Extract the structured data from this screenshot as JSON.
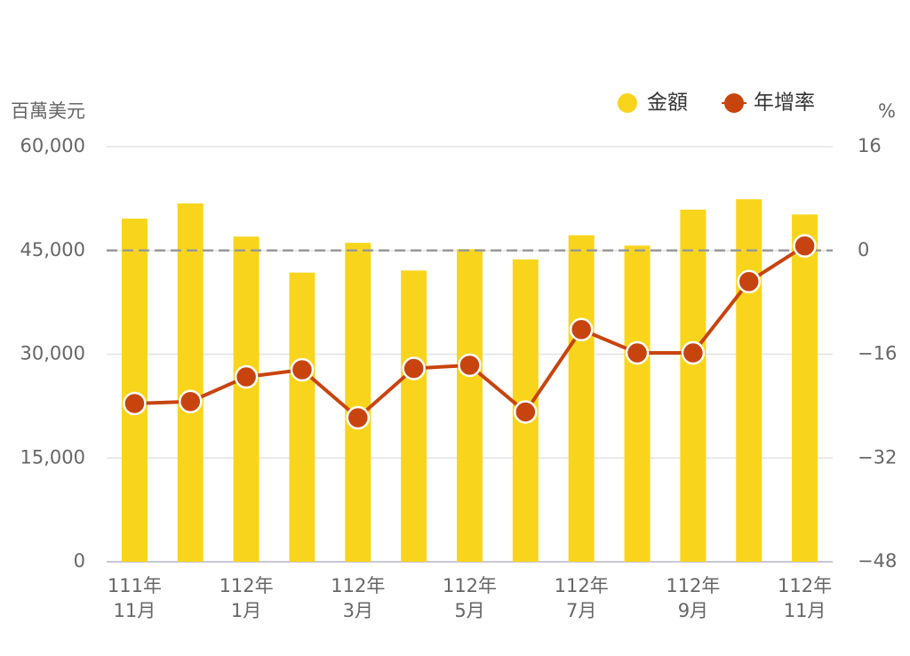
{
  "chart_data": {
    "type": "bar-line",
    "y_label": "百萬美元",
    "y2_label": "%",
    "categories": [
      [
        "111年",
        "11月"
      ],
      null,
      [
        "112年",
        "1月"
      ],
      null,
      [
        "112年",
        "3月"
      ],
      null,
      [
        "112年",
        "5月"
      ],
      null,
      [
        "112年",
        "7月"
      ],
      null,
      [
        "112年",
        "9月"
      ],
      null,
      [
        "112年",
        "11月"
      ]
    ],
    "series": [
      {
        "name": "金額",
        "color": "#f8d51c",
        "kind": "bar",
        "values": [
          49600,
          51800,
          47000,
          41800,
          46100,
          42100,
          45200,
          43700,
          47200,
          45700,
          50900,
          52400,
          50200
        ]
      },
      {
        "name": "年增率",
        "color": "#c8440f",
        "kind": "line",
        "axis": "y2",
        "values": [
          -23.6,
          -23.3,
          -19.5,
          -18.4,
          -25.8,
          -18.2,
          -17.7,
          -24.9,
          -12.2,
          -15.8,
          -15.8,
          -4.8,
          0.7
        ]
      }
    ],
    "ylim": [
      0,
      60000
    ],
    "yticks": [
      {
        "value": 0,
        "label": "0"
      },
      {
        "value": 15000,
        "label": "15,000"
      },
      {
        "value": 30000,
        "label": "30,000"
      },
      {
        "value": 45000,
        "label": "45,000"
      },
      {
        "value": 60000,
        "label": "60,000"
      }
    ],
    "y2lim": [
      -48,
      16
    ],
    "y2ticks": [
      {
        "value": -48,
        "label": "−48"
      },
      {
        "value": -32,
        "label": "−32"
      },
      {
        "value": -16,
        "label": "−16"
      },
      0,
      16
    ],
    "y2_reference_line": 0,
    "grid": true,
    "legend": "top-right"
  }
}
